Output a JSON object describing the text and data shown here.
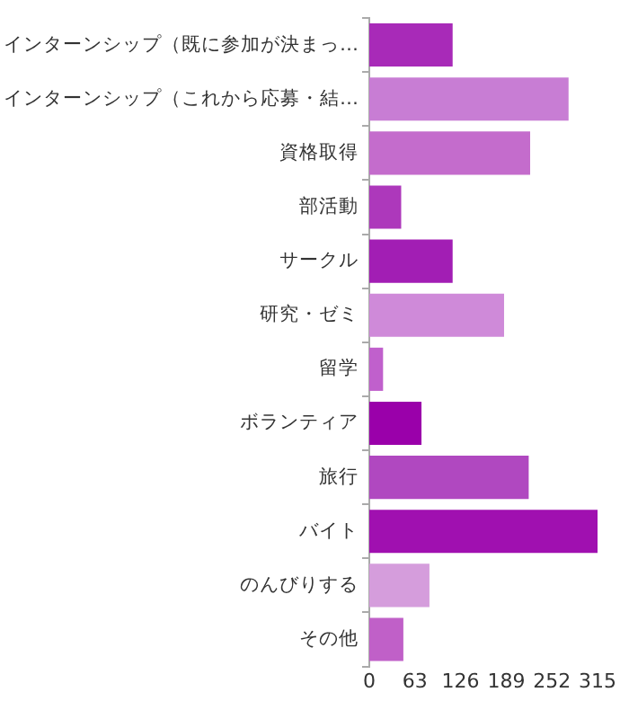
{
  "chart_data": {
    "type": "bar",
    "orientation": "horizontal",
    "categories": [
      "インターンシップ（既に参加が決まっ…",
      "インターンシップ（これから応募・結…",
      "資格取得",
      "部活動",
      "サークル",
      "研究・ゼミ",
      "留学",
      "ボランティア",
      "旅行",
      "バイト",
      "のんびりする",
      "その他"
    ],
    "values": [
      115,
      275,
      222,
      44,
      115,
      186,
      19,
      72,
      220,
      315,
      83,
      47
    ],
    "colors": [
      "#a82ab8",
      "#c87dd4",
      "#c46ccc",
      "#ad38bb",
      "#a21eb4",
      "#cf8ad9",
      "#c060cc",
      "#9a00aa",
      "#b048c0",
      "#a010b0",
      "#d59ddc",
      "#c060c8"
    ],
    "xlim": [
      0,
      315
    ],
    "xticks": [
      0,
      63,
      126,
      189,
      252,
      315
    ],
    "grid": false,
    "legend": false
  }
}
